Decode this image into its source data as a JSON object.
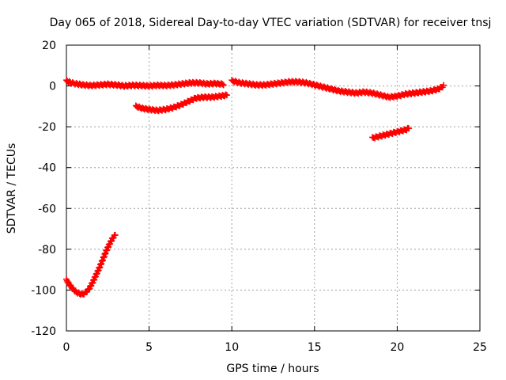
{
  "chart_data": {
    "type": "scatter",
    "title": "Day 065 of 2018, Sidereal Day-to-day VTEC variation (SDTVAR) for receiver tnsj",
    "xlabel": "GPS time / hours",
    "ylabel": "SDTVAR / TECUs",
    "xlim": [
      0,
      25
    ],
    "ylim": [
      -120,
      20
    ],
    "xticks": [
      0,
      5,
      10,
      15,
      20,
      25
    ],
    "yticks": [
      -120,
      -100,
      -80,
      -60,
      -40,
      -20,
      0,
      20
    ],
    "xtick_labels": [
      "0",
      "5",
      "10",
      "15",
      "20",
      "25"
    ],
    "ytick_labels": [
      "-120",
      "-100",
      "-80",
      "-60",
      "-40",
      "-20",
      "0",
      "20"
    ],
    "grid": true,
    "marker": "plus",
    "color": "#ff0000",
    "series": [
      {
        "segments": [
          {
            "x": [
              0.0,
              0.3,
              0.6,
              1.0,
              1.5,
              2.0,
              2.5,
              3.0,
              3.5,
              4.0,
              4.5,
              5.0,
              5.5,
              6.0,
              6.5,
              7.0,
              7.5,
              8.0,
              8.5,
              9.0,
              9.5
            ],
            "y": [
              2.5,
              1.5,
              1.0,
              0.5,
              0.2,
              0.5,
              0.8,
              0.5,
              0.0,
              0.3,
              0.2,
              0.0,
              0.3,
              0.2,
              0.5,
              1.0,
              1.5,
              1.5,
              1.0,
              1.2,
              0.8
            ]
          },
          {
            "x": [
              10.0,
              10.5,
              11.0,
              11.5,
              12.0,
              12.5,
              13.0,
              13.5,
              14.0,
              14.5,
              15.0,
              15.5,
              16.0,
              16.5,
              17.0,
              17.5,
              18.0,
              18.5,
              19.0,
              19.5,
              20.0,
              20.5,
              21.0,
              21.5,
              22.0,
              22.5,
              22.8
            ],
            "y": [
              2.5,
              1.5,
              1.0,
              0.5,
              0.5,
              1.0,
              1.5,
              2.0,
              2.0,
              1.5,
              0.5,
              -0.5,
              -1.5,
              -2.5,
              -3.0,
              -3.5,
              -3.0,
              -3.5,
              -4.5,
              -5.5,
              -5.0,
              -4.0,
              -3.5,
              -3.0,
              -2.5,
              -1.5,
              0.0
            ]
          },
          {
            "x": [
              4.2,
              4.6,
              5.0,
              5.5,
              6.0,
              6.5,
              7.0,
              7.4,
              7.8,
              8.3,
              8.8,
              9.3,
              9.7
            ],
            "y": [
              -10.0,
              -11.0,
              -11.5,
              -12.0,
              -11.5,
              -10.5,
              -9.0,
              -7.5,
              -6.0,
              -5.5,
              -5.5,
              -5.0,
              -4.5
            ]
          },
          {
            "x": [
              18.5,
              19.0,
              19.5,
              20.0,
              20.5,
              20.7
            ],
            "y": [
              -25.5,
              -24.5,
              -23.5,
              -22.5,
              -21.5,
              -20.8
            ]
          },
          {
            "x": [
              0.0,
              0.2,
              0.4,
              0.6,
              0.8,
              1.0,
              1.2,
              1.4,
              1.6,
              1.8,
              2.0,
              2.2,
              2.4,
              2.6,
              2.8,
              2.95
            ],
            "y": [
              -95.0,
              -97.5,
              -99.5,
              -101.0,
              -101.8,
              -102.0,
              -101.0,
              -99.0,
              -96.0,
              -92.5,
              -89.0,
              -85.0,
              -81.0,
              -77.5,
              -74.5,
              -73.0
            ]
          }
        ]
      }
    ]
  }
}
